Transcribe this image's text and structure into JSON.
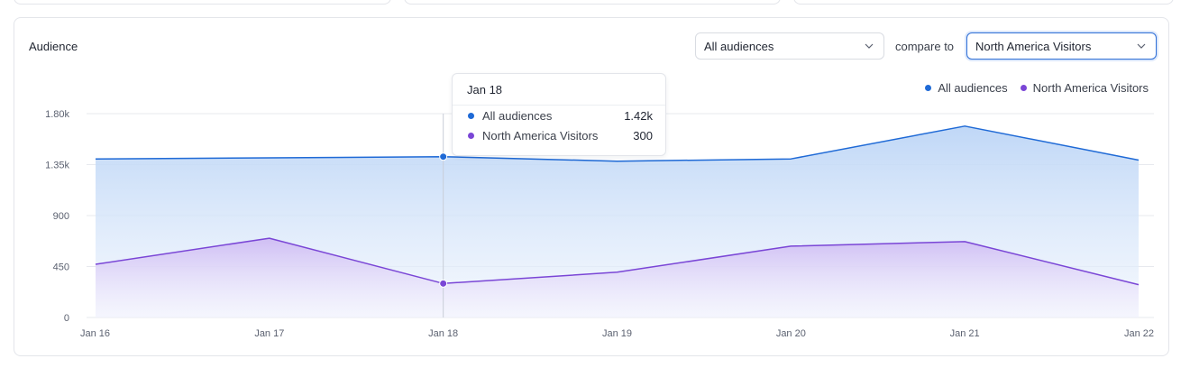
{
  "card": {
    "title": "Audience"
  },
  "controls": {
    "audience_select": "All audiences",
    "compare_label": "compare to",
    "compare_select": "North America Visitors"
  },
  "colors": {
    "primary": "#1f6ad6",
    "secondary": "#7a46d6",
    "grid": "#e7e9ee"
  },
  "tooltip": {
    "date": "Jan 18",
    "rows": [
      {
        "name": "All audiences",
        "value": "1.42k",
        "color": "#1f6ad6"
      },
      {
        "name": "North America Visitors",
        "value": "300",
        "color": "#7a46d6"
      }
    ]
  },
  "chart_data": {
    "type": "area",
    "categories": [
      "Jan 16",
      "Jan 17",
      "Jan 18",
      "Jan 19",
      "Jan 20",
      "Jan 21",
      "Jan 22"
    ],
    "series": [
      {
        "name": "All audiences",
        "values": [
          1400,
          1410,
          1420,
          1380,
          1400,
          1690,
          1390
        ],
        "color": "#1f6ad6"
      },
      {
        "name": "North America Visitors",
        "values": [
          470,
          700,
          300,
          400,
          630,
          670,
          290
        ],
        "color": "#7a46d6"
      }
    ],
    "yticks": [
      "0",
      "450",
      "900",
      "1.35k",
      "1.80k"
    ],
    "ylim": [
      0,
      1800
    ],
    "highlight_index": 2,
    "legend": "top-right",
    "grid": true
  }
}
